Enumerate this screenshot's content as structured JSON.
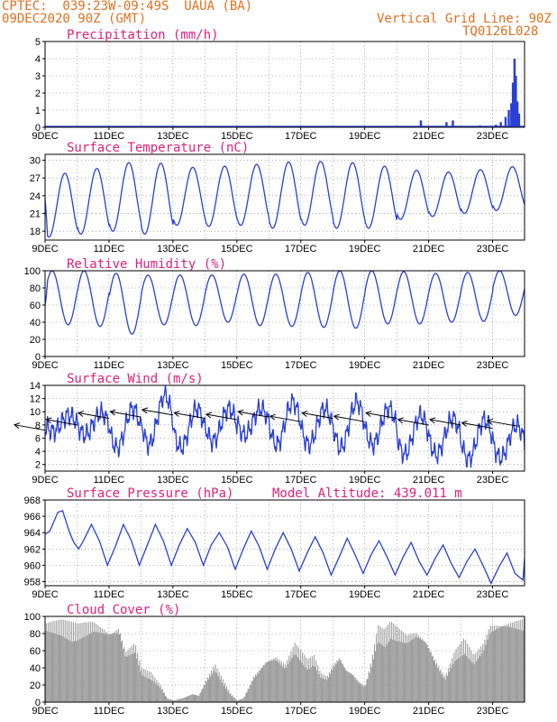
{
  "header": {
    "line1": "CPTEC:  039:23W-09:49S  UAUA (BA)",
    "line2": "09DEC2020 90Z (GMT)",
    "right1": "Vertical Grid Line: 90Z",
    "right2": "TQ0126L028",
    "model_altitude": "Model Altitude: 439.011 m"
  },
  "colors": {
    "header": "#e07020",
    "title": "#e0207a",
    "line": "#2a3fd6",
    "cloud": "#9e9e9e",
    "wind_arrow": "#000000"
  },
  "x_labels": [
    "9DEC",
    "11DEC",
    "13DEC",
    "15DEC",
    "17DEC",
    "19DEC",
    "21DEC",
    "23DEC"
  ],
  "chart_data": [
    {
      "type": "bar",
      "title": "Precipitation (mm/h)",
      "ylim": [
        0,
        5
      ],
      "yticks": [
        0,
        1,
        2,
        3,
        4,
        5
      ],
      "x_range_days": [
        9,
        24
      ],
      "events": [
        {
          "day": 20.75,
          "value": 0.4
        },
        {
          "day": 21.55,
          "value": 0.3
        },
        {
          "day": 21.75,
          "value": 0.4
        },
        {
          "day": 22.6,
          "value": 0.1
        },
        {
          "day": 23.1,
          "value": 0.15
        },
        {
          "day": 23.25,
          "value": 0.3
        },
        {
          "day": 23.4,
          "value": 0.6
        },
        {
          "day": 23.5,
          "value": 1.0
        },
        {
          "day": 23.58,
          "value": 1.4
        },
        {
          "day": 23.63,
          "value": 2.6
        },
        {
          "day": 23.68,
          "value": 4.0
        },
        {
          "day": 23.72,
          "value": 3.0
        },
        {
          "day": 23.77,
          "value": 1.5
        },
        {
          "day": 23.82,
          "value": 0.8
        }
      ]
    },
    {
      "type": "line",
      "title": "Surface Temperature (nC)",
      "ylim": [
        16.5,
        31
      ],
      "yticks": [
        18,
        21,
        24,
        27,
        30
      ],
      "x_range_days": [
        9,
        24
      ],
      "daily_max": [
        27.8,
        28.6,
        29.6,
        29.5,
        28.8,
        29.0,
        29.3,
        29.7,
        29.8,
        29.6,
        29.0,
        28.3,
        28.0,
        28.4,
        28.9,
        25.4
      ],
      "daily_min": [
        17.0,
        17.5,
        18.0,
        17.5,
        19.0,
        18.8,
        19.0,
        18.5,
        19.0,
        18.5,
        18.5,
        20.0,
        20.5,
        21.0,
        21.5,
        21.5
      ]
    },
    {
      "type": "line",
      "title": "Relative Humidity (%)",
      "ylim": [
        0,
        100
      ],
      "yticks": [
        0,
        20,
        40,
        60,
        80,
        100
      ],
      "x_range_days": [
        9,
        24
      ],
      "daily_max": [
        100,
        100,
        97,
        95,
        95,
        95,
        96,
        96,
        98,
        100,
        100,
        99,
        97,
        98,
        100,
        98
      ],
      "daily_min": [
        37,
        35,
        26,
        37,
        36,
        40,
        36,
        35,
        34,
        33,
        38,
        38,
        40,
        41,
        48,
        66
      ]
    },
    {
      "type": "line",
      "title": "Surface Wind (m/s)",
      "ylim": [
        1,
        14
      ],
      "yticks": [
        2,
        4,
        6,
        8,
        10,
        12,
        14
      ],
      "x_range_days": [
        9,
        24
      ],
      "daily_max": [
        9.5,
        9.8,
        10.5,
        12.5,
        10.5,
        10.5,
        10.5,
        11.5,
        10.5,
        11.5,
        10.5,
        9.5,
        9.0,
        8.8,
        8.0
      ],
      "daily_min": [
        7.0,
        6.5,
        4.5,
        5.0,
        4.5,
        5.5,
        6.5,
        5.0,
        5.0,
        4.5,
        5.0,
        3.5,
        3.5,
        2.8,
        3.0
      ],
      "arrows": [
        {
          "day": 9.0,
          "speed": 7.2
        },
        {
          "day": 10.0,
          "speed": 8.0
        },
        {
          "day": 11.0,
          "speed": 9.0
        },
        {
          "day": 12.0,
          "speed": 9.2
        },
        {
          "day": 13.0,
          "speed": 9.5
        },
        {
          "day": 14.0,
          "speed": 9.0
        },
        {
          "day": 15.0,
          "speed": 8.8
        },
        {
          "day": 16.0,
          "speed": 9.2
        },
        {
          "day": 17.0,
          "speed": 8.5
        },
        {
          "day": 18.0,
          "speed": 9.0
        },
        {
          "day": 19.0,
          "speed": 8.5
        },
        {
          "day": 20.0,
          "speed": 9.0
        },
        {
          "day": 21.0,
          "speed": 8.0
        },
        {
          "day": 22.0,
          "speed": 8.0
        },
        {
          "day": 23.0,
          "speed": 7.5
        },
        {
          "day": 23.8,
          "speed": 7.8
        }
      ]
    },
    {
      "type": "line",
      "title": "Surface Pressure (hPa)",
      "ylim": [
        957.5,
        968
      ],
      "yticks": [
        958,
        960,
        962,
        964,
        966,
        968
      ],
      "x_range_days": [
        9,
        24
      ],
      "points": [
        [
          9.0,
          963.8
        ],
        [
          9.15,
          964.2
        ],
        [
          9.4,
          966.5
        ],
        [
          9.55,
          966.7
        ],
        [
          9.75,
          964.2
        ],
        [
          9.9,
          962.8
        ],
        [
          10.05,
          962.0
        ],
        [
          10.2,
          963.0
        ],
        [
          10.45,
          965.0
        ],
        [
          10.7,
          963.0
        ],
        [
          10.95,
          960.0
        ],
        [
          11.2,
          962.3
        ],
        [
          11.45,
          965.0
        ],
        [
          11.7,
          963.0
        ],
        [
          11.95,
          960.0
        ],
        [
          12.2,
          962.5
        ],
        [
          12.45,
          965.0
        ],
        [
          12.7,
          963.0
        ],
        [
          12.95,
          960.0
        ],
        [
          13.2,
          962.5
        ],
        [
          13.45,
          964.5
        ],
        [
          13.7,
          962.8
        ],
        [
          13.95,
          960.0
        ],
        [
          14.2,
          962.5
        ],
        [
          14.45,
          964.0
        ],
        [
          14.7,
          962.3
        ],
        [
          14.95,
          959.5
        ],
        [
          15.2,
          962.0
        ],
        [
          15.45,
          964.2
        ],
        [
          15.7,
          962.3
        ],
        [
          15.95,
          959.5
        ],
        [
          16.2,
          962.0
        ],
        [
          16.45,
          964.0
        ],
        [
          16.7,
          962.0
        ],
        [
          16.95,
          959.3
        ],
        [
          17.2,
          961.5
        ],
        [
          17.45,
          963.5
        ],
        [
          17.7,
          961.5
        ],
        [
          17.95,
          958.8
        ],
        [
          18.2,
          961.0
        ],
        [
          18.45,
          963.3
        ],
        [
          18.7,
          961.3
        ],
        [
          18.95,
          959.0
        ],
        [
          19.2,
          961.3
        ],
        [
          19.45,
          963.0
        ],
        [
          19.7,
          961.0
        ],
        [
          19.95,
          958.8
        ],
        [
          20.2,
          961.0
        ],
        [
          20.45,
          962.8
        ],
        [
          20.7,
          960.5
        ],
        [
          20.95,
          958.8
        ],
        [
          21.2,
          960.8
        ],
        [
          21.45,
          962.5
        ],
        [
          21.7,
          960.3
        ],
        [
          21.95,
          958.5
        ],
        [
          22.2,
          960.5
        ],
        [
          22.45,
          962.0
        ],
        [
          22.7,
          960.0
        ],
        [
          22.95,
          957.8
        ],
        [
          23.2,
          959.8
        ],
        [
          23.45,
          961.5
        ],
        [
          23.7,
          959.0
        ],
        [
          23.95,
          958.2
        ],
        [
          24.0,
          960.8
        ]
      ]
    },
    {
      "type": "bar",
      "title": "Cloud Cover (%)",
      "ylim": [
        0,
        100
      ],
      "yticks": [
        0,
        20,
        40,
        60,
        80,
        100
      ],
      "x_range_days": [
        9,
        24
      ],
      "points": [
        [
          9.0,
          95
        ],
        [
          9.5,
          97
        ],
        [
          10.0,
          92
        ],
        [
          10.5,
          96
        ],
        [
          11.0,
          85
        ],
        [
          11.3,
          90
        ],
        [
          11.5,
          60
        ],
        [
          11.8,
          70
        ],
        [
          12.0,
          40
        ],
        [
          12.3,
          35
        ],
        [
          12.6,
          20
        ],
        [
          12.8,
          5
        ],
        [
          13.0,
          2
        ],
        [
          13.3,
          5
        ],
        [
          13.6,
          10
        ],
        [
          13.8,
          8
        ],
        [
          14.0,
          25
        ],
        [
          14.3,
          45
        ],
        [
          14.5,
          30
        ],
        [
          14.8,
          10
        ],
        [
          15.0,
          2
        ],
        [
          15.2,
          5
        ],
        [
          15.5,
          30
        ],
        [
          15.7,
          40
        ],
        [
          15.9,
          50
        ],
        [
          16.2,
          55
        ],
        [
          16.5,
          45
        ],
        [
          16.8,
          70
        ],
        [
          17.0,
          60
        ],
        [
          17.2,
          50
        ],
        [
          17.4,
          55
        ],
        [
          17.6,
          35
        ],
        [
          17.8,
          30
        ],
        [
          18.0,
          45
        ],
        [
          18.2,
          55
        ],
        [
          18.4,
          40
        ],
        [
          18.6,
          35
        ],
        [
          18.8,
          25
        ],
        [
          19.0,
          20
        ],
        [
          19.2,
          50
        ],
        [
          19.4,
          90
        ],
        [
          19.6,
          85
        ],
        [
          19.8,
          95
        ],
        [
          20.0,
          88
        ],
        [
          20.3,
          80
        ],
        [
          20.6,
          85
        ],
        [
          20.9,
          75
        ],
        [
          21.2,
          50
        ],
        [
          21.5,
          30
        ],
        [
          21.8,
          60
        ],
        [
          22.1,
          75
        ],
        [
          22.4,
          55
        ],
        [
          22.7,
          70
        ],
        [
          22.9,
          92
        ],
        [
          23.2,
          95
        ],
        [
          23.5,
          97
        ],
        [
          23.8,
          98
        ],
        [
          24.0,
          99
        ]
      ]
    }
  ]
}
